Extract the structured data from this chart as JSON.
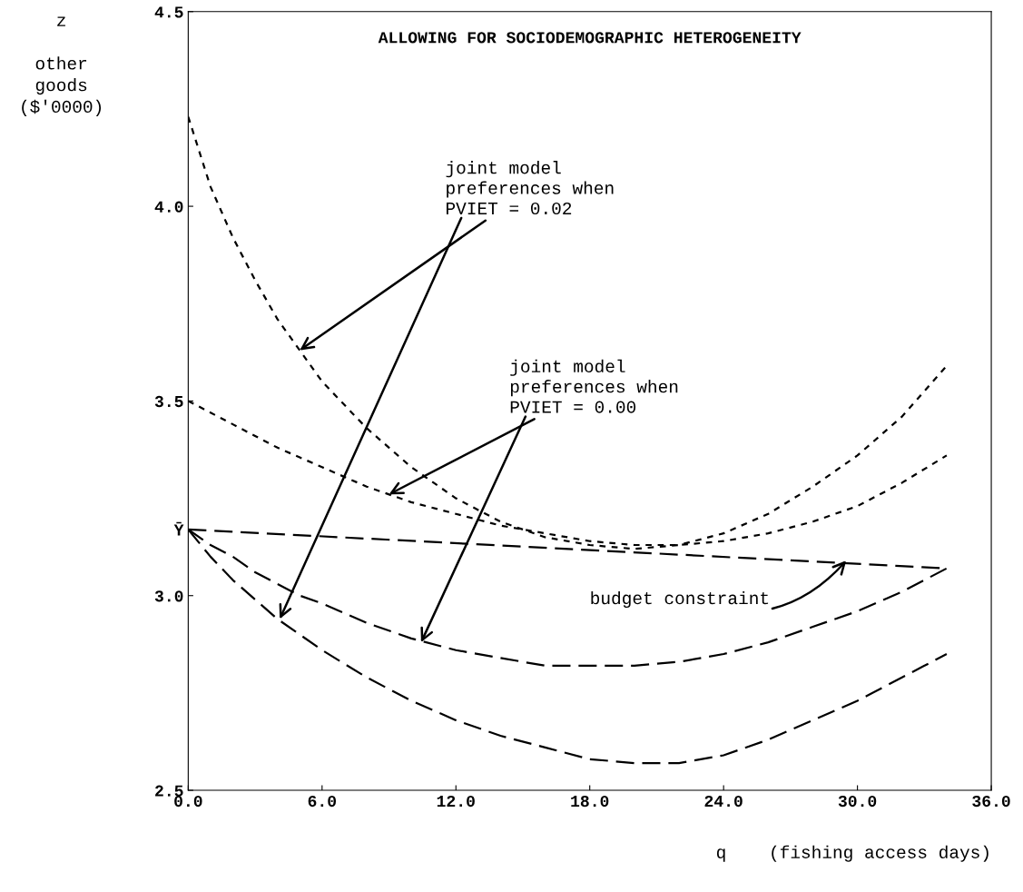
{
  "chart_data": {
    "type": "line",
    "title": "ALLOWING FOR SOCIODEMOGRAPHIC HETEROGENEITY",
    "xlabel": "q    (fishing access days)",
    "ylabel": "z\n\nother\ngoods\n($'0000)",
    "x": [
      0,
      1,
      2,
      3,
      4,
      5,
      6,
      8,
      10,
      12,
      14,
      16,
      18,
      20,
      22,
      24,
      26,
      28,
      30,
      32,
      34
    ],
    "series": [
      {
        "color": "#000000",
        "line_style": "dotted",
        "values": [
          4.23,
          4.05,
          3.92,
          3.81,
          3.71,
          3.63,
          3.55,
          3.43,
          3.33,
          3.25,
          3.19,
          3.15,
          3.13,
          3.12,
          3.13,
          3.16,
          3.21,
          3.28,
          3.36,
          3.46,
          3.59
        ]
      },
      {
        "color": "#000000",
        "line_style": "dotted",
        "values": [
          3.5,
          3.47,
          3.44,
          3.41,
          3.38,
          3.355,
          3.33,
          3.28,
          3.24,
          3.21,
          3.18,
          3.16,
          3.14,
          3.13,
          3.13,
          3.14,
          3.16,
          3.19,
          3.23,
          3.29,
          3.36
        ]
      },
      {
        "color": "#000000",
        "line_style": "dashed",
        "x": [
          0,
          34
        ],
        "values": [
          3.17,
          3.07
        ]
      },
      {
        "color": "#000000",
        "line_style": "dashed",
        "values": [
          3.17,
          3.13,
          3.1,
          3.06,
          3.03,
          3.0,
          2.98,
          2.93,
          2.89,
          2.86,
          2.84,
          2.82,
          2.82,
          2.82,
          2.83,
          2.85,
          2.88,
          2.92,
          2.96,
          3.01,
          3.07
        ]
      },
      {
        "color": "#000000",
        "line_style": "dashed",
        "values": [
          3.17,
          3.1,
          3.04,
          2.99,
          2.94,
          2.9,
          2.86,
          2.79,
          2.73,
          2.68,
          2.64,
          2.61,
          2.58,
          2.57,
          2.57,
          2.59,
          2.63,
          2.68,
          2.73,
          2.79,
          2.85
        ]
      }
    ],
    "xlim": [
      0,
      36
    ],
    "ylim": [
      2.5,
      4.5
    ],
    "xticks": [
      {
        "value": 0,
        "label": "0.0"
      },
      {
        "value": 6,
        "label": "6.0"
      },
      {
        "value": 12,
        "label": "12.0"
      },
      {
        "value": 18,
        "label": "18.0"
      },
      {
        "value": 24,
        "label": "24.0"
      },
      {
        "value": 30,
        "label": "30.0"
      },
      {
        "value": 36,
        "label": "36.0"
      }
    ],
    "yticks": [
      2.5,
      {
        "value": 3,
        "label": "3.0"
      },
      {
        "value": 3.17,
        "label": "Ȳ"
      },
      3.5,
      {
        "value": 4,
        "label": "4.0"
      },
      4.5
    ],
    "grid": false,
    "legend": false,
    "annotations": [
      {
        "text": "joint model\npreferences when\nPVIET = 0.02",
        "x": 5,
        "y": 3.63
      },
      {
        "text": "joint model\npreferences when\nPVIET = 0.00",
        "x": 9,
        "y": 3.26
      },
      {
        "text": "budget constraint",
        "x": 29.5,
        "y": 3.09
      }
    ]
  }
}
